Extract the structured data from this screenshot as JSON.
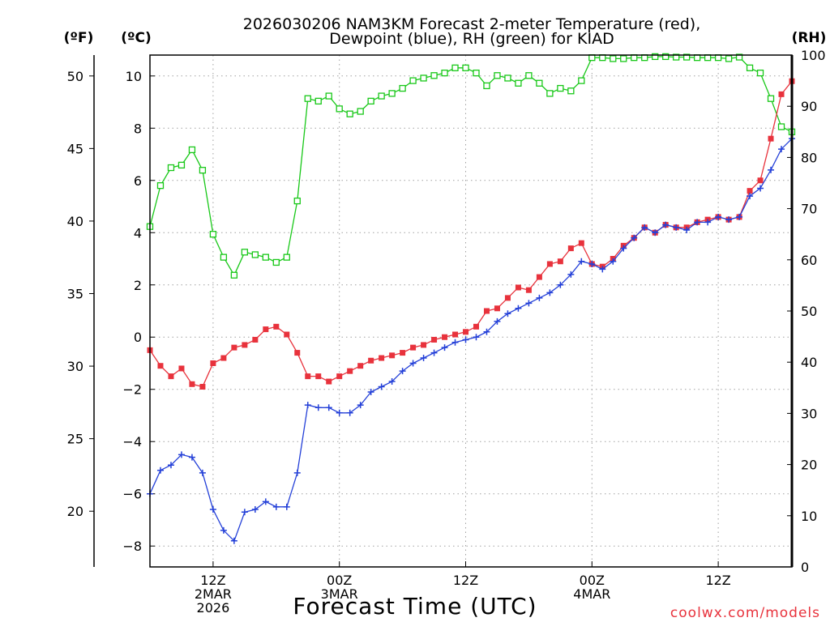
{
  "title_line1": "2026030206 NAM3KM Forecast 2-meter Temperature (red),",
  "title_line2": "Dewpoint (blue), RH (green) for KIAD",
  "unit_f": "(ºF)",
  "unit_c": "(ºC)",
  "unit_rh": "(RH)",
  "credit": "coolwx.com/models",
  "colors": {
    "temp": "#e8323c",
    "dew": "#2440d8",
    "rh": "#18c818",
    "grid": "#a0a0a0"
  },
  "chart_data": {
    "type": "line",
    "title": "2026030206 NAM3KM Forecast 2-meter Temperature (red), Dewpoint (blue), RH (green) for KIAD",
    "xlabel": "Forecast Time (UTC)",
    "x_range_hours": [
      0,
      61
    ],
    "x_ticks": [
      {
        "hour": 6,
        "lines": [
          "12Z",
          "2MAR",
          "2026"
        ]
      },
      {
        "hour": 18,
        "lines": [
          "00Z",
          "3MAR"
        ]
      },
      {
        "hour": 30,
        "lines": [
          "12Z"
        ]
      },
      {
        "hour": 42,
        "lines": [
          "00Z",
          "4MAR"
        ]
      },
      {
        "hour": 54,
        "lines": [
          "12Z"
        ]
      }
    ],
    "y_celsius": {
      "range": [
        -8.8,
        10.8
      ],
      "ticks": [
        -8,
        -6,
        -4,
        -2,
        0,
        2,
        4,
        6,
        8,
        10
      ]
    },
    "y_fahrenheit": {
      "ticks": [
        20,
        25,
        30,
        35,
        40,
        45,
        50
      ]
    },
    "y_rh": {
      "range": [
        0,
        100
      ],
      "ticks": [
        0,
        10,
        20,
        30,
        40,
        50,
        60,
        70,
        80,
        90,
        100
      ]
    },
    "series": [
      {
        "name": "Temperature (C)",
        "marker": "filled-square",
        "values": [
          -0.5,
          -1.1,
          -1.5,
          -1.2,
          -1.8,
          -1.9,
          -1.0,
          -0.8,
          -0.4,
          -0.3,
          -0.1,
          0.3,
          0.4,
          0.1,
          -0.6,
          -1.5,
          -1.5,
          -1.7,
          -1.5,
          -1.3,
          -1.1,
          -0.9,
          -0.8,
          -0.7,
          -0.6,
          -0.4,
          -0.3,
          -0.1,
          0.0,
          0.1,
          0.2,
          0.4,
          1.0,
          1.1,
          1.5,
          1.9,
          1.8,
          2.3,
          2.8,
          2.9,
          3.4,
          3.6,
          2.8,
          2.7,
          3.0,
          3.5,
          3.8,
          4.2,
          4.0,
          4.3,
          4.2,
          4.2,
          4.4,
          4.5,
          4.6,
          4.5,
          4.6,
          5.6,
          6.0,
          7.6,
          9.3,
          9.8
        ]
      },
      {
        "name": "Dewpoint (C)",
        "marker": "plus",
        "values": [
          -6.0,
          -5.1,
          -4.9,
          -4.5,
          -4.6,
          -5.2,
          -6.6,
          -7.4,
          -7.8,
          -6.7,
          -6.6,
          -6.3,
          -6.5,
          -6.5,
          -5.2,
          -2.6,
          -2.7,
          -2.7,
          -2.9,
          -2.9,
          -2.6,
          -2.1,
          -1.9,
          -1.7,
          -1.3,
          -1.0,
          -0.8,
          -0.6,
          -0.4,
          -0.2,
          -0.1,
          0.0,
          0.2,
          0.6,
          0.9,
          1.1,
          1.3,
          1.5,
          1.7,
          2.0,
          2.4,
          2.9,
          2.8,
          2.6,
          2.9,
          3.4,
          3.8,
          4.2,
          4.0,
          4.3,
          4.2,
          4.1,
          4.4,
          4.4,
          4.6,
          4.5,
          4.6,
          5.4,
          5.7,
          6.4,
          7.2,
          7.6
        ]
      },
      {
        "name": "RH (%)",
        "marker": "open-square",
        "values": [
          66.5,
          74.5,
          78,
          78.5,
          81.5,
          77.5,
          65,
          60.5,
          57,
          61.5,
          61,
          60.5,
          59.5,
          60.5,
          71.5,
          91.5,
          91,
          92,
          89.5,
          88.5,
          89,
          91,
          92,
          92.5,
          93.5,
          95,
          95.5,
          96,
          96.5,
          97.5,
          97.5,
          96.5,
          94,
          96,
          95.5,
          94.5,
          96,
          94.5,
          92.5,
          93.5,
          93,
          95,
          99.5,
          99.5,
          99.3,
          99.3,
          99.5,
          99.5,
          99.7,
          99.7,
          99.6,
          99.6,
          99.5,
          99.5,
          99.5,
          99.3,
          99.6,
          97.5,
          96.5,
          91.5,
          86,
          85
        ]
      }
    ]
  }
}
